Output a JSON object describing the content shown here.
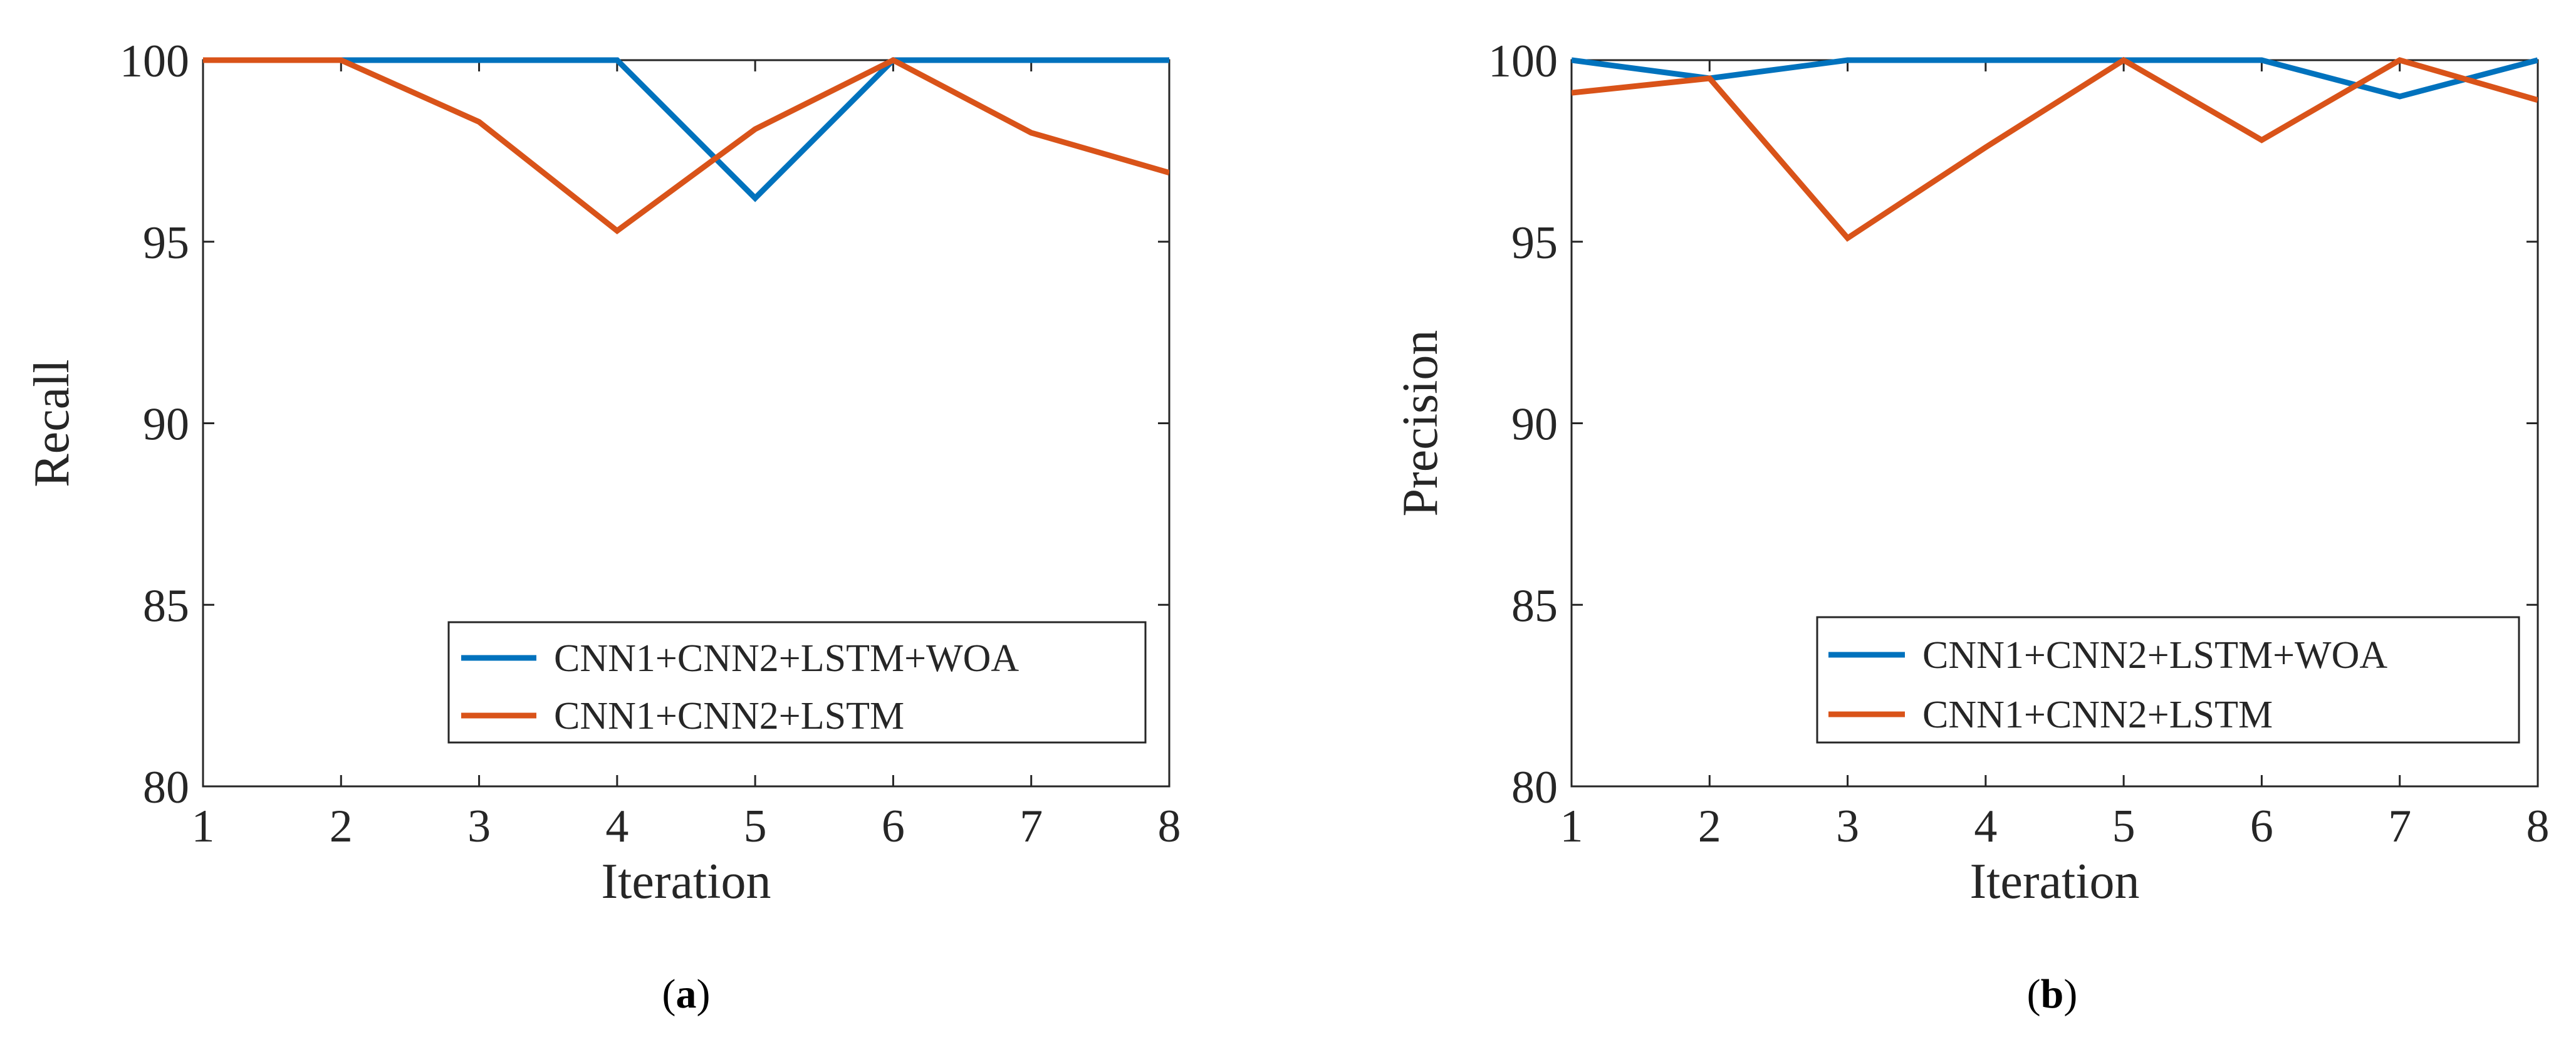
{
  "chart_data": [
    {
      "type": "line",
      "panel_label": "a",
      "xlabel": "Iteration",
      "ylabel": "Recall",
      "xlim": [
        1,
        8
      ],
      "ylim": [
        80,
        100
      ],
      "xticks": [
        1,
        2,
        3,
        4,
        5,
        6,
        7,
        8
      ],
      "yticks": [
        80,
        85,
        90,
        95,
        100
      ],
      "x": [
        1,
        2,
        3,
        4,
        5,
        6,
        7,
        8
      ],
      "grid": false,
      "legend_position": "bottom-right",
      "series": [
        {
          "name": "CNN1+CNN2+LSTM+WOA",
          "color": "#0072BD",
          "values": [
            100,
            100,
            100,
            100,
            96.2,
            100,
            100,
            100
          ]
        },
        {
          "name": "CNN1+CNN2+LSTM",
          "color": "#D95319",
          "values": [
            100,
            100,
            98.3,
            95.3,
            98.1,
            100,
            98.0,
            96.9
          ]
        }
      ]
    },
    {
      "type": "line",
      "panel_label": "b",
      "xlabel": "Iteration",
      "ylabel": "Precision",
      "xlim": [
        1,
        8
      ],
      "ylim": [
        80,
        100
      ],
      "xticks": [
        1,
        2,
        3,
        4,
        5,
        6,
        7,
        8
      ],
      "yticks": [
        80,
        85,
        90,
        95,
        100
      ],
      "x": [
        1,
        2,
        3,
        4,
        5,
        6,
        7,
        8
      ],
      "grid": false,
      "legend_position": "bottom-right",
      "series": [
        {
          "name": "CNN1+CNN2+LSTM+WOA",
          "color": "#0072BD",
          "values": [
            100,
            99.5,
            100,
            100,
            100,
            100,
            99.0,
            100
          ]
        },
        {
          "name": "CNN1+CNN2+LSTM",
          "color": "#D95319",
          "values": [
            99.1,
            99.5,
            95.1,
            97.6,
            100,
            97.8,
            100,
            98.9
          ]
        }
      ]
    }
  ]
}
